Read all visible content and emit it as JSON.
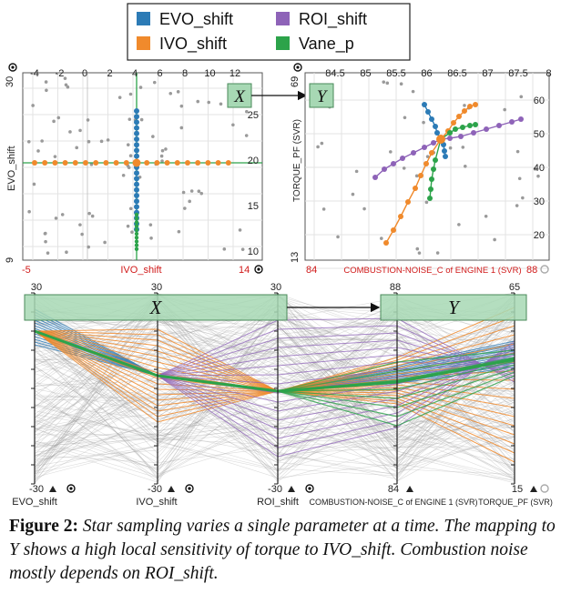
{
  "legend": {
    "items": [
      {
        "label": "EVO_shift",
        "color": "#2c7bb6"
      },
      {
        "label": "ROI_shift",
        "color": "#8e63b8"
      },
      {
        "label": "IVO_shift",
        "color": "#f08a2c"
      },
      {
        "label": "Vane_p",
        "color": "#2ca34a"
      }
    ]
  },
  "colors": {
    "evo": "#2c7bb6",
    "ivo": "#f08a2c",
    "roi": "#8e63b8",
    "vane": "#2ca34a",
    "box_fill": "#a7d8b4",
    "box_stroke": "#4a8a5a",
    "red": "#d11a1a",
    "gray": "#9a9a9a"
  },
  "scatter_x": {
    "box_label": "X",
    "ylabel": "EVO_shift",
    "xlabel": "IVO_shift",
    "top_ticks": [
      "-4",
      "-2",
      "0",
      "2",
      "4",
      "6",
      "8",
      "10",
      "12"
    ],
    "right_ticks": [
      "25",
      "20",
      "15",
      "10"
    ],
    "y_max_label": "30",
    "y_min_label": "9",
    "x_min_label": "-5",
    "x_max_label": "14"
  },
  "scatter_y": {
    "box_label": "Y",
    "ylabel": "TORQUE_PF (SVR)",
    "xlabel": "COMBUSTION-NOISE_C of ENGINE 1 (SVR)",
    "top_ticks": [
      "84.5",
      "85",
      "85.5",
      "86",
      "86.5",
      "87",
      "87.5",
      "8"
    ],
    "right_ticks": [
      "60",
      "50",
      "40",
      "30",
      "20"
    ],
    "y_max_label": "69",
    "y_min_label": "13",
    "x_min_label": "84",
    "x_max_label": "88"
  },
  "parallel": {
    "x_box_label": "X",
    "y_box_label": "Y",
    "axes": [
      {
        "name": "EVO_shift",
        "top": "30",
        "bottom": "-30"
      },
      {
        "name": "IVO_shift",
        "top": "30",
        "bottom": "-30"
      },
      {
        "name": "ROI_shift",
        "top": "30",
        "bottom": "-30"
      },
      {
        "name": "COMBUSTION-NOISE_C of ENGINE 1 (SVR)",
        "top": "88",
        "bottom": "84"
      },
      {
        "name": "TORQUE_PF (SVR)",
        "top": "65",
        "bottom": "15"
      }
    ]
  },
  "caption": {
    "lead": "Figure 2:",
    "text": " Star sampling varies a single parameter at a time. The mapping to Y shows a high local sensitivity of torque to IVO_shift. Combustion noise mostly depends on ROI_shift."
  }
}
